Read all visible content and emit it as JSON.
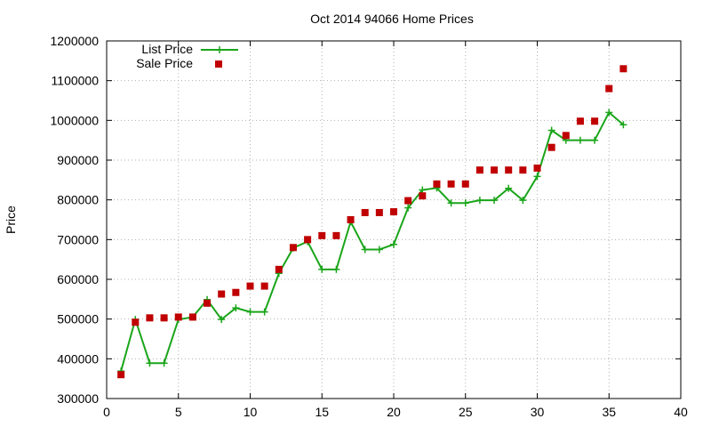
{
  "chart_data": {
    "type": "line",
    "title": "Oct 2014 94066 Home Prices",
    "xlabel": "",
    "ylabel": "Price",
    "xlim": [
      0,
      40
    ],
    "ylim": [
      300000,
      1200000
    ],
    "xticks": [
      0,
      5,
      10,
      15,
      20,
      25,
      30,
      35,
      40
    ],
    "yticks": [
      300000,
      400000,
      500000,
      600000,
      700000,
      800000,
      900000,
      1000000,
      1100000,
      1200000
    ],
    "grid": true,
    "legend_position": "top-left",
    "series": [
      {
        "name": "List Price",
        "style": "line+cross",
        "color": "#1aa51a",
        "x": [
          1,
          2,
          3,
          4,
          5,
          6,
          7,
          8,
          9,
          10,
          11,
          12,
          13,
          14,
          15,
          16,
          17,
          18,
          19,
          20,
          21,
          22,
          23,
          24,
          25,
          26,
          27,
          28,
          29,
          30,
          31,
          32,
          33,
          34,
          35,
          36
        ],
        "y": [
          369000,
          499000,
          389000,
          389000,
          499000,
          505000,
          549000,
          499000,
          528000,
          518000,
          518000,
          615000,
          679000,
          695000,
          625000,
          625000,
          745000,
          675000,
          675000,
          688000,
          780000,
          825000,
          830000,
          792000,
          792000,
          799000,
          799000,
          829000,
          799000,
          859000,
          975000,
          950000,
          950000,
          950000,
          1020000,
          989000
        ]
      },
      {
        "name": "Sale Price",
        "style": "square",
        "color": "#c00000",
        "x": [
          1,
          2,
          3,
          4,
          5,
          6,
          7,
          8,
          9,
          10,
          11,
          12,
          13,
          14,
          15,
          16,
          17,
          18,
          19,
          20,
          21,
          22,
          23,
          24,
          25,
          26,
          27,
          28,
          29,
          30,
          31,
          32,
          33,
          34,
          35,
          36
        ],
        "y": [
          360000,
          492000,
          503000,
          503000,
          505000,
          505000,
          540000,
          563000,
          567000,
          583000,
          583000,
          625000,
          680000,
          700000,
          710000,
          710000,
          750000,
          768000,
          768000,
          770000,
          798000,
          810000,
          840000,
          840000,
          840000,
          875000,
          875000,
          875000,
          875000,
          880000,
          932000,
          962000,
          998000,
          998000,
          1080000,
          1130000
        ]
      }
    ]
  }
}
